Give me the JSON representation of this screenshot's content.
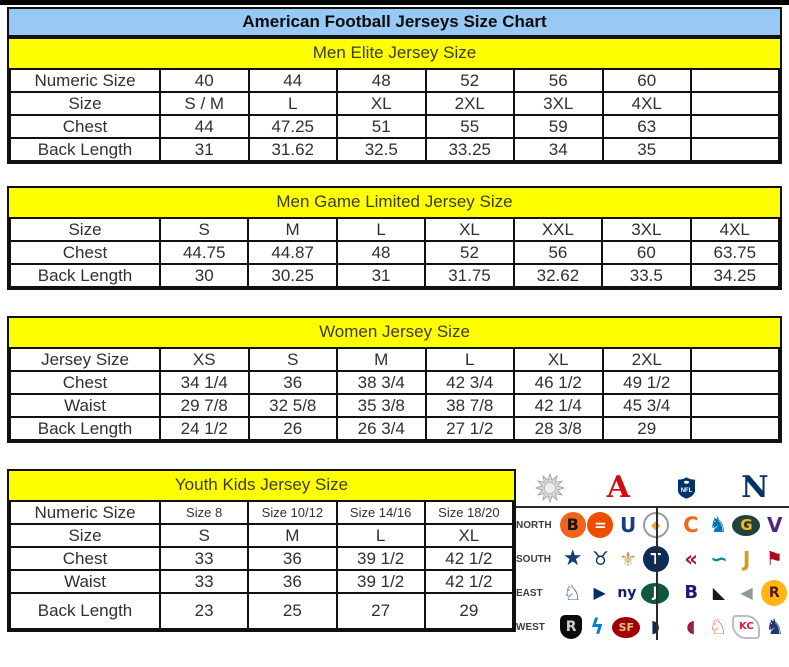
{
  "title": "American Football Jerseys Size Chart",
  "colors": {
    "title_bar_bg": "#98c9f4",
    "section_header_bg": "#ffff00",
    "border": "#111111",
    "top_strip": "#000000",
    "afc_red": "#d50a0a",
    "nfc_blue": "#013369"
  },
  "tables": [
    {
      "header": "Men Elite Jersey Size",
      "rows": [
        [
          "Numeric Size",
          "40",
          "44",
          "48",
          "52",
          "56",
          "60",
          ""
        ],
        [
          "Size",
          "S / M",
          "L",
          "XL",
          "2XL",
          "3XL",
          "4XL",
          ""
        ],
        [
          "Chest",
          "44",
          "47.25",
          "51",
          "55",
          "59",
          "63",
          ""
        ],
        [
          "Back Length",
          "31",
          "31.62",
          "32.5",
          "33.25",
          "34",
          "35",
          ""
        ]
      ]
    },
    {
      "header": "Men Game Limited Jersey Size",
      "rows": [
        [
          "Size",
          "S",
          "M",
          "L",
          "XL",
          "XXL",
          "3XL",
          "4XL"
        ],
        [
          "Chest",
          "44.75",
          "44.87",
          "48",
          "52",
          "56",
          "60",
          "63.75"
        ],
        [
          "Back Length",
          "30",
          "30.25",
          "31",
          "31.75",
          "32.62",
          "33.5",
          "34.25"
        ]
      ]
    },
    {
      "header": "Women Jersey Size",
      "rows": [
        [
          "Jersey Size",
          "XS",
          "S",
          "M",
          "L",
          "XL",
          "2XL",
          ""
        ],
        [
          "Chest",
          "34 1/4",
          "36",
          "38 3/4",
          "42 3/4",
          "46 1/2",
          "49 1/2",
          ""
        ],
        [
          "Waist",
          "29 7/8",
          "32 5/8",
          "35 3/8",
          "38 7/8",
          "42 1/4",
          "45 3/4",
          ""
        ],
        [
          "Back Length",
          "24 1/2",
          "26",
          "26 3/4",
          "27 1/2",
          "28 3/8",
          "29",
          ""
        ]
      ]
    },
    {
      "header": "Youth Kids Jersey Size",
      "rows": [
        [
          "Numeric Size",
          "Size 8",
          "Size 10/12",
          "Size 14/16",
          "Size 18/20"
        ],
        [
          "Size",
          "S",
          "M",
          "L",
          "XL"
        ],
        [
          "Chest",
          "33",
          "36",
          "39 1/2",
          "42 1/2"
        ],
        [
          "Waist",
          "33",
          "36",
          "39 1/2",
          "42 1/2"
        ],
        [
          "Back Length",
          "23",
          "25",
          "27",
          "29"
        ]
      ]
    }
  ],
  "logos": {
    "header": {
      "sun_icon": "sun-starburst",
      "afc_glyph": "A",
      "nfl_label": "NFL",
      "nfc_glyph": "N"
    },
    "rows": [
      {
        "label": "NORTH",
        "afc": [
          "bengals",
          "browns",
          "colts",
          "steelers"
        ],
        "nfc": [
          "bears",
          "lions",
          "packers",
          "vikings"
        ]
      },
      {
        "label": "SOUTH",
        "afc": [
          "cowboys",
          "texans",
          "saints",
          "titans"
        ],
        "nfc": [
          "falcons",
          "dolphins",
          "jaguars",
          "buccaneers"
        ]
      },
      {
        "label": "EAST",
        "afc": [
          "bills",
          "patriots",
          "giants",
          "jets"
        ],
        "nfc": [
          "ravens",
          "panthers",
          "eagles",
          "redskins"
        ]
      },
      {
        "label": "WEST",
        "afc": [
          "raiders",
          "chargers",
          "49ers",
          "seahawks"
        ],
        "nfc": [
          "cardinals",
          "broncos",
          "chiefs",
          "rams"
        ]
      }
    ],
    "teams": {
      "bengals": {
        "name": "Bengals",
        "bg": "#f3611b",
        "fg": "#161616",
        "glyph": "B",
        "shape": "circle",
        "size": 16
      },
      "browns": {
        "name": "Browns",
        "bg": "#ec4e00",
        "fg": "#ffffff",
        "glyph": "=",
        "shape": "circle",
        "size": 15
      },
      "colts": {
        "name": "Colts",
        "bg": "transparent",
        "fg": "#16407c",
        "glyph": "U",
        "shape": "plain",
        "size": 20
      },
      "steelers": {
        "name": "Steelers",
        "bg": "#ffffff",
        "fg": "#e8a33d",
        "glyph": "◆",
        "shape": "circle-border",
        "size": 12
      },
      "bears": {
        "name": "Bears",
        "bg": "transparent",
        "fg": "#f26522",
        "glyph": "C",
        "shape": "plain",
        "size": 21
      },
      "lions": {
        "name": "Lions",
        "bg": "transparent",
        "fg": "#0076b6",
        "glyph": "♞",
        "shape": "plain",
        "size": 21
      },
      "packers": {
        "name": "Packers",
        "bg": "#24423c",
        "fg": "#ffb612",
        "glyph": "G",
        "shape": "oval",
        "size": 15
      },
      "vikings": {
        "name": "Vikings",
        "bg": "transparent",
        "fg": "#4f2683",
        "glyph": "V",
        "shape": "plain",
        "size": 20
      },
      "cowboys": {
        "name": "Cowboys",
        "bg": "transparent",
        "fg": "#123b77",
        "glyph": "★",
        "shape": "plain",
        "size": 22
      },
      "texans": {
        "name": "Texans",
        "bg": "transparent",
        "fg": "#0c2d57",
        "glyph": "♉",
        "shape": "plain",
        "size": 19
      },
      "saints": {
        "name": "Saints",
        "bg": "transparent",
        "fg": "#bda05c",
        "glyph": "⚜",
        "shape": "plain",
        "size": 20
      },
      "titans": {
        "name": "Titans",
        "bg": "#0c2d57",
        "fg": "#ffffff",
        "glyph": "T",
        "shape": "circle",
        "size": 15
      },
      "falcons": {
        "name": "Falcons",
        "bg": "transparent",
        "fg": "#a71930",
        "glyph": "«",
        "shape": "plain",
        "size": 21
      },
      "dolphins": {
        "name": "Dolphins",
        "bg": "transparent",
        "fg": "#008e97",
        "glyph": "∽",
        "shape": "plain",
        "size": 21
      },
      "jaguars": {
        "name": "Jaguars",
        "bg": "transparent",
        "fg": "#cf9c1e",
        "glyph": "J",
        "shape": "plain",
        "size": 20
      },
      "buccaneers": {
        "name": "Buccaneers",
        "bg": "transparent",
        "fg": "#a80c22",
        "glyph": "⚑",
        "shape": "plain",
        "size": 19
      },
      "bills": {
        "name": "Bills",
        "bg": "transparent",
        "fg": "#00338d",
        "glyph": "♘",
        "shape": "plain",
        "size": 21
      },
      "patriots": {
        "name": "Patriots",
        "bg": "transparent",
        "fg": "#002f5f",
        "glyph": "▶",
        "shape": "plain",
        "size": 16
      },
      "giants": {
        "name": "Giants",
        "bg": "transparent",
        "fg": "#0b2265",
        "glyph": "ny",
        "shape": "plain",
        "size": 14
      },
      "jets": {
        "name": "Jets",
        "bg": "#125740",
        "fg": "#ffffff",
        "glyph": "J",
        "shape": "oval",
        "size": 14
      },
      "ravens": {
        "name": "Ravens",
        "bg": "transparent",
        "fg": "#241773",
        "glyph": "B",
        "shape": "plain",
        "size": 18
      },
      "panthers": {
        "name": "Panthers",
        "bg": "transparent",
        "fg": "#101820",
        "glyph": "◣",
        "shape": "plain",
        "size": 16
      },
      "eagles": {
        "name": "Eagles",
        "bg": "transparent",
        "fg": "#8e999e",
        "glyph": "◀",
        "shape": "plain",
        "size": 16
      },
      "redskins": {
        "name": "Redskins",
        "bg": "#ffb612",
        "fg": "#5a1414",
        "glyph": "R",
        "shape": "circle",
        "size": 14
      },
      "raiders": {
        "name": "Raiders",
        "bg": "#0b0b0b",
        "fg": "#c7cdd1",
        "glyph": "R",
        "shape": "shield",
        "size": 14
      },
      "chargers": {
        "name": "Chargers",
        "bg": "transparent",
        "fg": "#0080c6",
        "glyph": "ϟ",
        "shape": "plain",
        "size": 21
      },
      "49ers": {
        "name": "49ers",
        "bg": "#a00000",
        "fg": "#e3c283",
        "glyph": "SF",
        "shape": "oval",
        "size": 11
      },
      "seahawks": {
        "name": "Seahawks",
        "bg": "transparent",
        "fg": "#0b2d53",
        "glyph": "◗",
        "shape": "plain",
        "size": 17
      },
      "cardinals": {
        "name": "Cardinals",
        "bg": "transparent",
        "fg": "#97233f",
        "glyph": "◖",
        "shape": "plain",
        "size": 17
      },
      "broncos": {
        "name": "Broncos",
        "bg": "transparent",
        "fg": "#f4501e",
        "glyph": "♘",
        "shape": "plain",
        "size": 21
      },
      "chiefs": {
        "name": "Chiefs",
        "bg": "#ffffff",
        "fg": "#e31837",
        "glyph": "KC",
        "shape": "arrow",
        "size": 10
      },
      "rams": {
        "name": "Rams",
        "bg": "transparent",
        "fg": "#1d3b6d",
        "glyph": "♞",
        "shape": "plain",
        "size": 21
      }
    }
  }
}
